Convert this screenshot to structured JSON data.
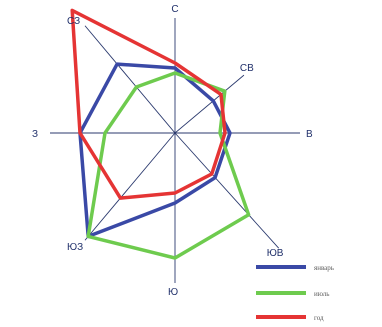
{
  "chart_data": {
    "type": "radar",
    "directions": [
      "С",
      "СВ",
      "В",
      "ЮВ",
      "Ю",
      "ЮЗ",
      "З",
      "СЗ"
    ],
    "series": [
      {
        "name": "январь",
        "color": "#3a49a6",
        "values": [
          65,
          50,
          55,
          60,
          70,
          135,
          95,
          90
        ]
      },
      {
        "name": "июль",
        "color": "#6ecb4e",
        "values": [
          60,
          65,
          45,
          110,
          125,
          135,
          70,
          60
        ]
      },
      {
        "name": "год",
        "color": "#e53434",
        "values": [
          70,
          60,
          50,
          55,
          60,
          85,
          95,
          160
        ]
      }
    ],
    "legend_position": "bottom-right",
    "grid": "compass spokes",
    "axis_max": 170
  }
}
